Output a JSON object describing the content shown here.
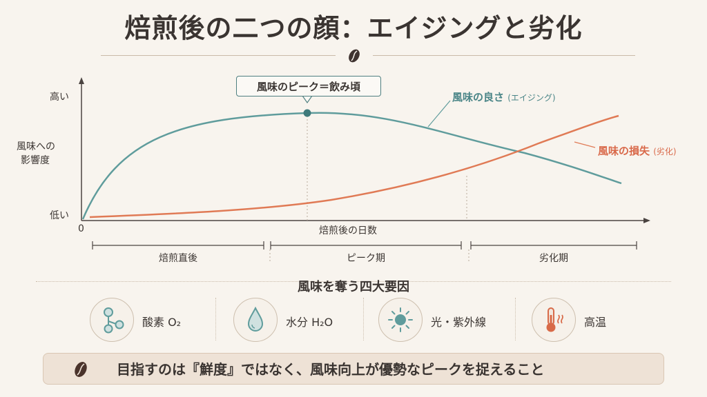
{
  "title": "焙煎後の二つの顔：エイジングと劣化",
  "chart": {
    "y_high": "高い",
    "y_low": "低い",
    "y_axis_label_1": "風味への",
    "y_axis_label_2": "影響度",
    "x_origin": "0",
    "x_axis_label": "焙煎後の日数",
    "peak_callout": "風味のピーク＝飲み頃",
    "series_teal_label": "風味の良さ",
    "series_teal_sub": "(エイジング)",
    "series_orange_label": "風味の損失",
    "series_orange_sub": "(劣化)",
    "phases": [
      "焙煎直後",
      "ピーク期",
      "劣化期"
    ]
  },
  "chart_data": {
    "type": "line",
    "xlabel": "焙煎後の日数",
    "ylabel": "風味への影響度",
    "series": [
      {
        "name": "風味の良さ",
        "shape": "rises quickly, peaks, then gradually declines",
        "color": "#5f9c9c"
      },
      {
        "name": "風味の損失",
        "shape": "slow rise then accelerating increase",
        "color": "#e07a55"
      }
    ]
  },
  "factors": {
    "title": "風味を奪う四大要因",
    "items": [
      {
        "icon": "molecule-icon",
        "label": "酸素 O₂"
      },
      {
        "icon": "water-drop-icon",
        "label": "水分 H₂O"
      },
      {
        "icon": "sun-icon",
        "label": "光・紫外線"
      },
      {
        "icon": "thermometer-icon",
        "label": "高温"
      }
    ]
  },
  "banner": {
    "icon": "coffee-bean-icon",
    "text": "目指すのは『鮮度』ではなく、風味向上が優勢なピークを捉えること"
  },
  "colors": {
    "teal": "#5f9c9c",
    "orange": "#e07a55",
    "background": "#f8f4ee"
  }
}
